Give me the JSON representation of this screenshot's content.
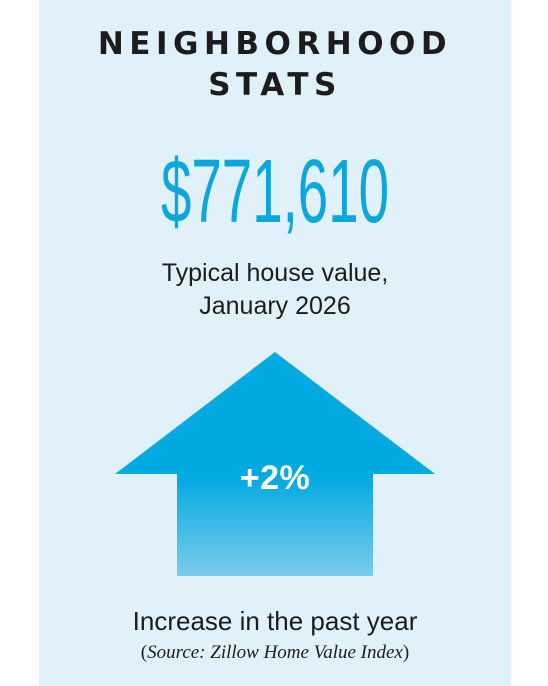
{
  "card": {
    "title_line1": "NEIGHBORHOOD",
    "title_line2": "STATS",
    "typical_value": "$771,610",
    "value_desc_line1": "Typical house value,",
    "value_desc_line2": "January 2026",
    "change": "+2%",
    "change_direction": "up-arrow-icon",
    "change_caption": "Increase in the past year",
    "source_open": "(",
    "source_text": "Source: Zillow Home Value Index",
    "source_close": ")"
  },
  "colors": {
    "panel_background": "#e1f1f9",
    "accent_blue": "#0aa7dc",
    "arrow_top": "#00a9e0",
    "arrow_bottom": "#7ccbeb",
    "text_dark": "#1c1c1c"
  }
}
